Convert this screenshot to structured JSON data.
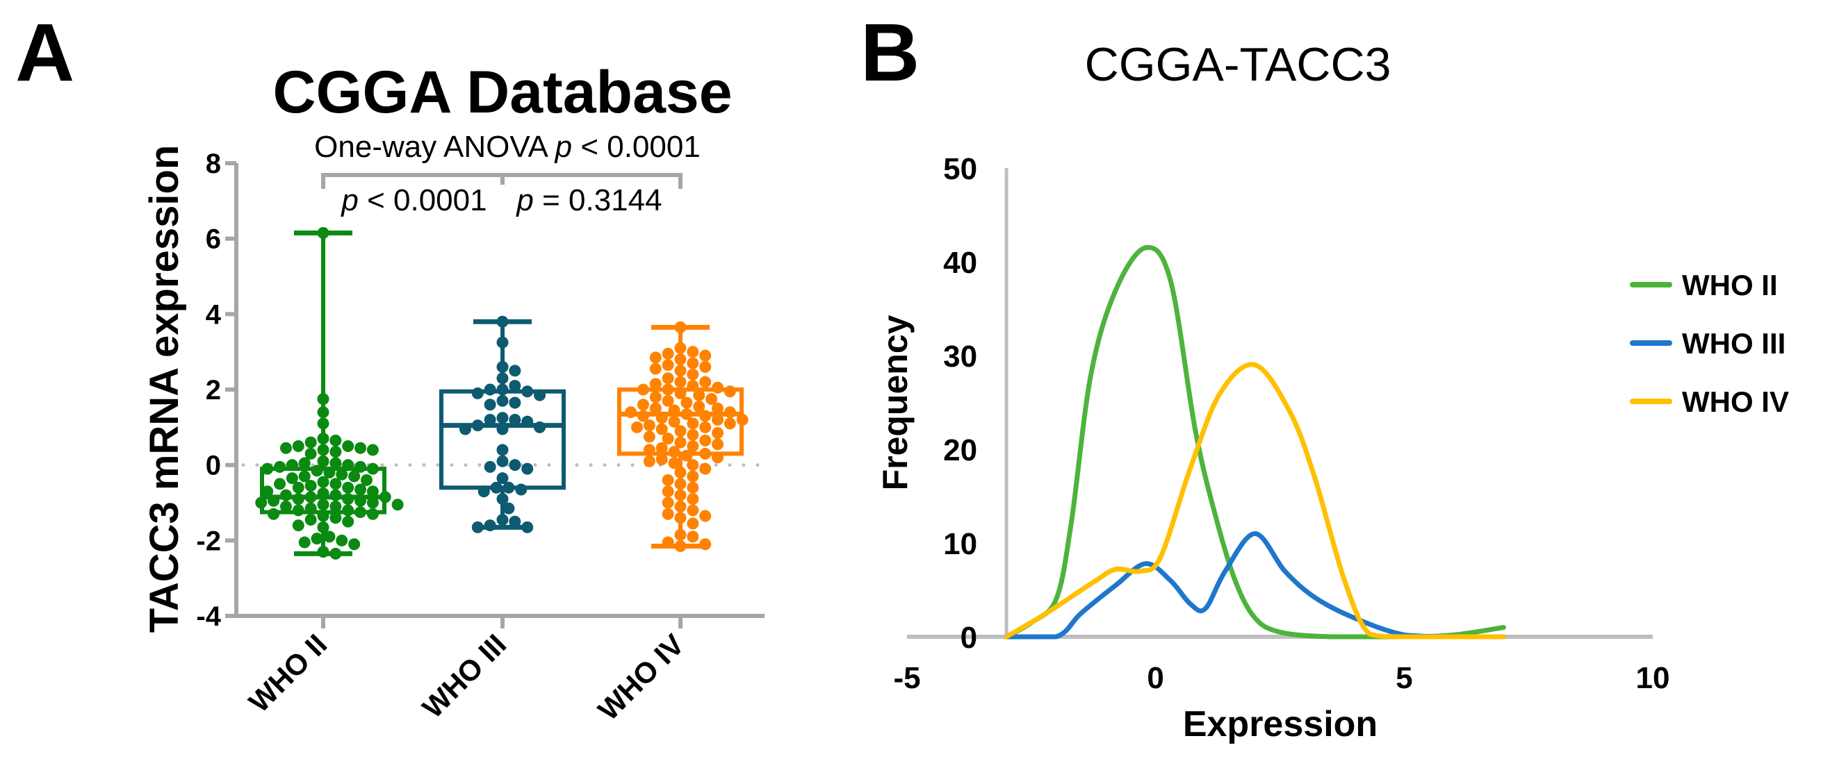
{
  "panel_labels": {
    "a": "A",
    "b": "B"
  },
  "chart_data": [
    {
      "type": "box",
      "title": "CGGA Database",
      "ylabel": "TACC3 mRNA expression",
      "xlabel": "",
      "ylim": [
        -4,
        8
      ],
      "yticks": [
        -4,
        -2,
        0,
        2,
        4,
        6,
        8
      ],
      "categories": [
        "WHO II",
        "WHO III",
        "WHO IV"
      ],
      "colors": [
        "#0b8a12",
        "#0e5a70",
        "#ff8200"
      ],
      "reference_line": 0,
      "annotations": {
        "anova_prefix": "One-way ANOVA ",
        "anova_p": "p",
        "anova_suffix": " < 0.0001",
        "pair1_p": "p",
        "pair1_text": " < 0.0001",
        "pair2_p": "p",
        "pair2_text": " = 0.3144"
      },
      "boxes": [
        {
          "min": -2.35,
          "q1": -1.25,
          "median": -0.85,
          "q3": -0.1,
          "max": 6.15
        },
        {
          "min": -1.65,
          "q1": -0.6,
          "median": 1.05,
          "q3": 1.95,
          "max": 3.8
        },
        {
          "min": -2.15,
          "q1": 0.3,
          "median": 1.35,
          "q3": 2.0,
          "max": 3.65
        }
      ],
      "points": [
        [
          6.15,
          1.75,
          1.4,
          1.1,
          0.7,
          0.65,
          0.6,
          0.5,
          0.5,
          0.45,
          0.45,
          0.4,
          0.4,
          0.35,
          0.3,
          0.1,
          0.05,
          0.05,
          0.0,
          0.0,
          -0.05,
          -0.05,
          -0.1,
          -0.1,
          -0.15,
          -0.2,
          -0.25,
          -0.3,
          -0.3,
          -0.35,
          -0.4,
          -0.45,
          -0.5,
          -0.5,
          -0.55,
          -0.6,
          -0.6,
          -0.65,
          -0.7,
          -0.7,
          -0.75,
          -0.8,
          -0.8,
          -0.85,
          -0.85,
          -0.9,
          -0.9,
          -0.95,
          -0.95,
          -1.0,
          -1.0,
          -1.05,
          -1.05,
          -1.1,
          -1.1,
          -1.15,
          -1.2,
          -1.2,
          -1.25,
          -1.3,
          -1.3,
          -1.35,
          -1.4,
          -1.45,
          -1.5,
          -1.6,
          -1.65,
          -1.9,
          -1.95,
          -2.0,
          -2.05,
          -2.1,
          -2.3,
          -2.35
        ],
        [
          3.8,
          3.25,
          2.6,
          2.5,
          2.3,
          2.1,
          2.0,
          2.0,
          1.95,
          1.9,
          1.85,
          1.7,
          1.65,
          1.6,
          1.25,
          1.2,
          1.2,
          1.15,
          1.05,
          1.0,
          0.95,
          0.95,
          0.4,
          0.1,
          0.0,
          -0.05,
          -0.1,
          -0.35,
          -0.6,
          -0.6,
          -0.65,
          -0.7,
          -0.9,
          -1.15,
          -1.45,
          -1.5,
          -1.6,
          -1.65,
          -1.65
        ],
        [
          3.65,
          3.1,
          3.0,
          2.95,
          2.9,
          2.85,
          2.8,
          2.7,
          2.65,
          2.6,
          2.55,
          2.5,
          2.4,
          2.3,
          2.2,
          2.2,
          2.15,
          2.1,
          2.05,
          2.0,
          2.0,
          1.95,
          1.9,
          1.85,
          1.8,
          1.75,
          1.7,
          1.65,
          1.6,
          1.55,
          1.5,
          1.5,
          1.45,
          1.4,
          1.4,
          1.35,
          1.3,
          1.3,
          1.25,
          1.2,
          1.2,
          1.15,
          1.1,
          1.1,
          1.05,
          1.0,
          1.0,
          0.95,
          0.9,
          0.85,
          0.8,
          0.75,
          0.7,
          0.65,
          0.6,
          0.55,
          0.5,
          0.45,
          0.4,
          0.35,
          0.3,
          0.25,
          0.2,
          0.15,
          0.1,
          0.05,
          0.0,
          -0.1,
          -0.2,
          -0.3,
          -0.4,
          -0.5,
          -0.6,
          -0.7,
          -0.8,
          -0.9,
          -1.0,
          -1.1,
          -1.2,
          -1.3,
          -1.35,
          -1.4,
          -1.55,
          -1.85,
          -1.9,
          -2.05,
          -2.1,
          -2.15
        ]
      ]
    },
    {
      "type": "line",
      "title": "CGGA-TACC3",
      "xlabel": "Expression",
      "ylabel": "Frequency",
      "xlim": [
        -5,
        10
      ],
      "ylim": [
        0,
        50
      ],
      "xticks": [
        -5,
        0,
        5,
        10
      ],
      "yticks": [
        0,
        10,
        20,
        30,
        40,
        50
      ],
      "legend_position": "right",
      "series": [
        {
          "name": "WHO II",
          "color": "#4db33d",
          "x": [
            -3,
            -2.5,
            -2,
            -1.7,
            -1.3,
            -0.8,
            -0.2,
            0.3,
            0.8,
            1.2,
            1.6,
            2,
            2.5,
            3.5,
            5,
            6,
            7
          ],
          "y": [
            0,
            1.5,
            4,
            12,
            28,
            37,
            41.5,
            38,
            22,
            13,
            6,
            2,
            0.5,
            0,
            0,
            0.2,
            1
          ]
        },
        {
          "name": "WHO III",
          "color": "#1f77cc",
          "x": [
            -3,
            -2,
            -1.5,
            -0.8,
            -0.2,
            0.3,
            0.7,
            1,
            1.4,
            2,
            2.6,
            3.2,
            4,
            5,
            6,
            7
          ],
          "y": [
            0,
            0,
            2.5,
            5.5,
            7.8,
            6,
            3.5,
            3,
            7,
            11,
            7,
            4.2,
            2,
            0.2,
            0,
            0
          ]
        },
        {
          "name": "WHO IV",
          "color": "#ffc000",
          "x": [
            -3,
            -2.2,
            -1.2,
            -0.8,
            -0.3,
            0.1,
            0.7,
            1.3,
            2,
            2.7,
            3.2,
            3.8,
            4.3,
            5,
            7
          ],
          "y": [
            0,
            2.5,
            6,
            7.2,
            7,
            8.5,
            18,
            26,
            29,
            24,
            17,
            6,
            0.3,
            0,
            0
          ]
        }
      ]
    }
  ]
}
